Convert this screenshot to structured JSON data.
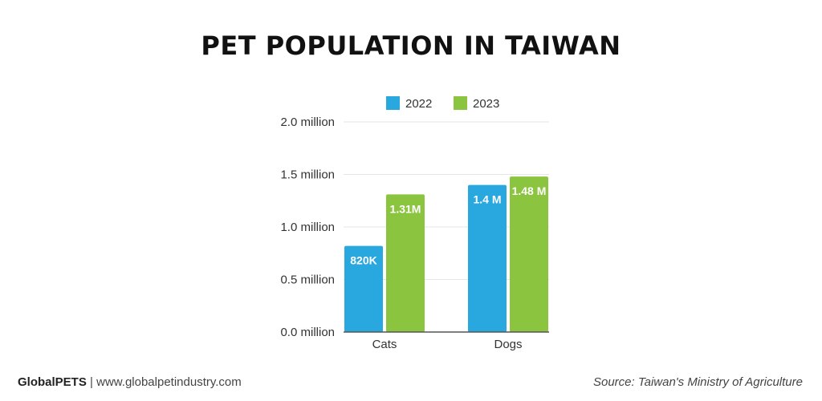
{
  "footer": {
    "brand": "GlobalPETS",
    "separator": "|",
    "website": "www.globalpetindustry.com",
    "source": "Source: Taiwan's Ministry of Agriculture"
  },
  "colors": {
    "series_2022": "#29A8DF",
    "series_2023": "#8BC43F",
    "grid": "#E6E6E6",
    "axis": "#555555"
  },
  "chart_data": {
    "type": "bar",
    "title": "PET POPULATION IN TAIWAN",
    "categories": [
      "Cats",
      "Dogs"
    ],
    "series": [
      {
        "name": "2022",
        "values": [
          0.82,
          1.4
        ],
        "labels": [
          "820K",
          "1.4 M"
        ]
      },
      {
        "name": "2023",
        "values": [
          1.31,
          1.48
        ],
        "labels": [
          "1.31M",
          "1.48 M"
        ]
      }
    ],
    "yticks": [
      "0.0 million",
      "0.5 million",
      "1.0 million",
      "1.5 million",
      "2.0 million"
    ],
    "ylim": [
      0,
      2.0
    ],
    "xlabel": "",
    "ylabel": "",
    "grid": true,
    "legend_position": "top"
  }
}
